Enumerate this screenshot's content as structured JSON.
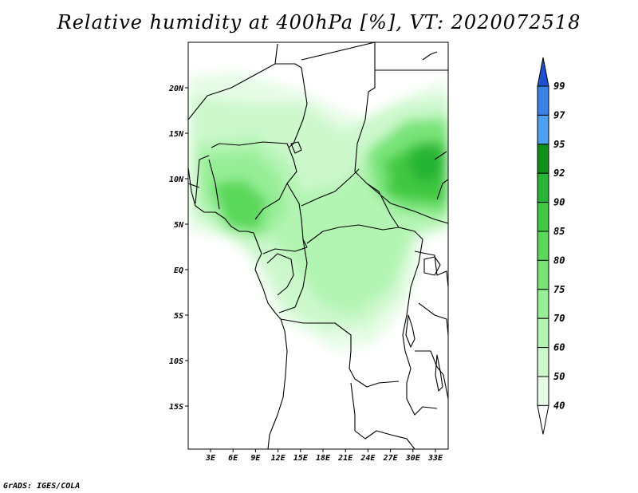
{
  "title": "Relative humidity at 400hPa [%], VT: 2020072518",
  "credit": "GrADS: IGES/COLA",
  "map": {
    "lat_labels": [
      "20N",
      "15N",
      "10N",
      "5N",
      "EQ",
      "5S",
      "10S",
      "15S"
    ],
    "lon_labels": [
      "3E",
      "6E",
      "9E",
      "12E",
      "15E",
      "18E",
      "21E",
      "24E",
      "27E",
      "30E",
      "33E"
    ]
  },
  "colorbar": {
    "levels": [
      "99",
      "97",
      "95",
      "92",
      "90",
      "85",
      "80",
      "75",
      "70",
      "60",
      "50",
      "40"
    ],
    "colors": [
      "#1e50d2",
      "#3c82e6",
      "#50a0f0",
      "#10901a",
      "#28b434",
      "#40c840",
      "#5ad85a",
      "#78e478",
      "#96ee96",
      "#b2f4b2",
      "#ccf8cc",
      "#e6fce6",
      "#ffffff"
    ]
  }
}
